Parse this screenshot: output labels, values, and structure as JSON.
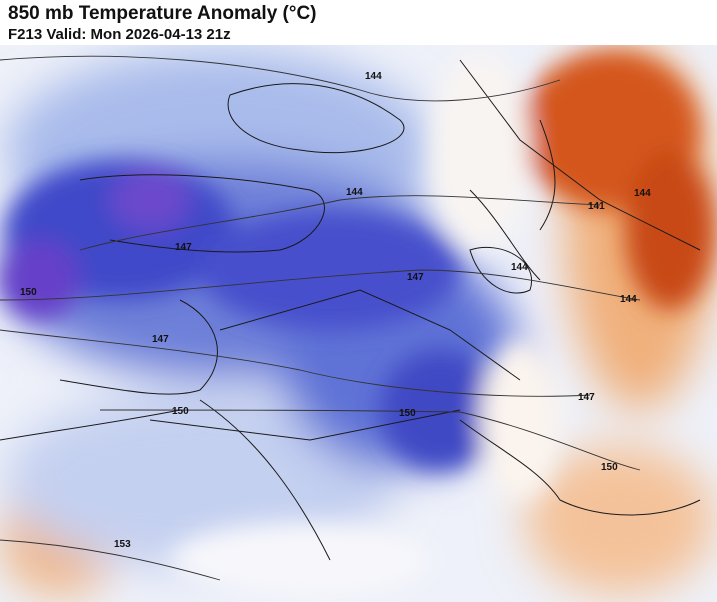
{
  "header": {
    "title": "850 mb Temperature Anomaly (°C)",
    "subtitle": "F213 Valid: Mon 2026-04-13 21z"
  },
  "colors": {
    "cold_deep": "#3a3fc8",
    "cold_mid": "#6f82da",
    "cold_light": "#b9c9ee",
    "neutral": "#f4f4f8",
    "warm_light": "#f6c9a0",
    "warm_mid": "#e98a4a",
    "warm_deep": "#c8430f"
  },
  "contour_labels": [
    "144",
    "144",
    "141",
    "144",
    "147",
    "147",
    "144",
    "144",
    "150",
    "147",
    "150",
    "150",
    "147",
    "150",
    "153"
  ]
}
